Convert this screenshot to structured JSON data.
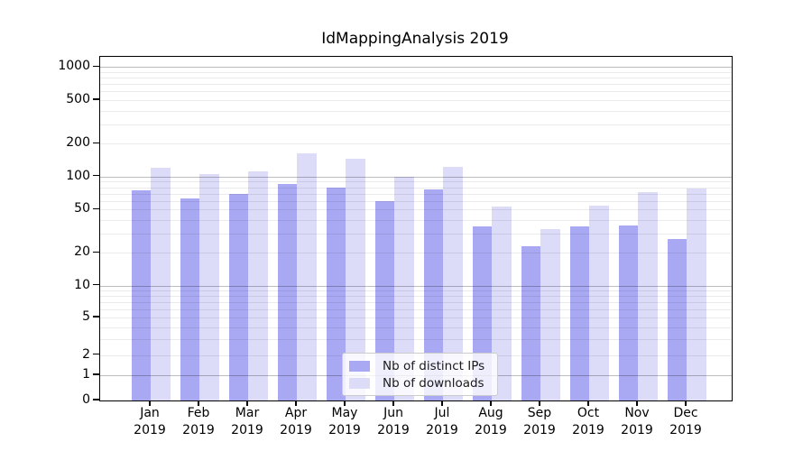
{
  "chart_data": {
    "type": "bar",
    "title": "IdMappingAnalysis 2019",
    "categories": [
      "Jan",
      "Feb",
      "Mar",
      "Apr",
      "May",
      "Jun",
      "Jul",
      "Aug",
      "Sep",
      "Oct",
      "Nov",
      "Dec"
    ],
    "x_tick_year": "2019",
    "series": [
      {
        "name": "Nb of distinct IPs",
        "color": "#a9a8f2",
        "values": [
          75,
          63,
          70,
          85,
          80,
          60,
          76,
          35,
          23,
          35,
          36,
          27
        ]
      },
      {
        "name": "Nb of downloads",
        "color": "#dcdbf8",
        "values": [
          120,
          106,
          112,
          162,
          145,
          100,
          123,
          53,
          33,
          54,
          72,
          78
        ]
      }
    ],
    "yscale": "asinh-symlog",
    "y_ticks": [
      0,
      1,
      2,
      5,
      10,
      20,
      50,
      100,
      200,
      500,
      1000
    ],
    "ylim": [
      0,
      1240
    ],
    "grid": "on",
    "minor_grid_multiples": [
      2,
      3,
      4,
      5,
      6,
      7,
      8,
      9
    ],
    "major_grid_at": [
      1,
      10,
      100,
      1000
    ],
    "legend_position": "lower center",
    "colors": {
      "major_grid": "#bdbdbd",
      "minor_grid": "#ebebeb",
      "spine": "#000000",
      "background": "#ffffff"
    }
  }
}
